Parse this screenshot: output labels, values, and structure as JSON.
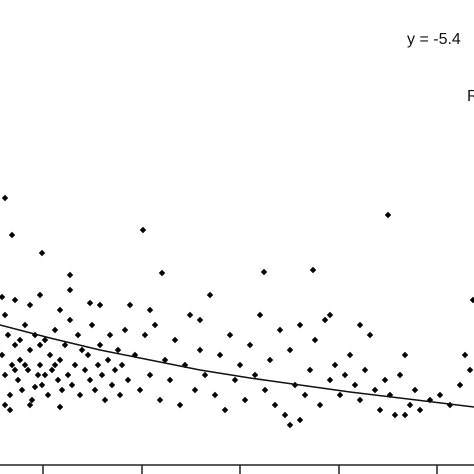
{
  "chart_data": {
    "type": "scatter",
    "annotations": [
      "y = -5.4",
      "R"
    ],
    "color": "#000000",
    "x": [
      0.02,
      0.05,
      0.08,
      0.1,
      0.12,
      0.15,
      0.05,
      0.18,
      0.2,
      0.22,
      0.25,
      0.28,
      0.3,
      0.32,
      0.35,
      0.38,
      0.4,
      0.42,
      0.45,
      0.48,
      0.5,
      0.52,
      0.55,
      0.58,
      0.6,
      0.62,
      0.65,
      0.68,
      0.7,
      0.72,
      0.75,
      0.78,
      0.8,
      0.82,
      0.85,
      0.88,
      0.9,
      0.92,
      0.95,
      0.98,
      1.0,
      1.02,
      1.05,
      1.08,
      1.1,
      1.12,
      1.15,
      1.18,
      1.2,
      1.22,
      1.25,
      1.28,
      0.1,
      0.3,
      0.6,
      0.35,
      0.15,
      0.45,
      0.25,
      0.55,
      0.4,
      0.2,
      0.05,
      0.3,
      0.4,
      0.6,
      0.7,
      0.9,
      1.0,
      0.15,
      0.05,
      0.12,
      0.42,
      1.43,
      1.62,
      2.64,
      3.13,
      3.88,
      4.73,
      0.7,
      0.02,
      1.35,
      1.4,
      1.45,
      1.5,
      1.55,
      1.6,
      1.65,
      1.7,
      1.75,
      1.8,
      1.85,
      1.9,
      1.95,
      2.0,
      2.05,
      2.1,
      2.15,
      2.2,
      2.25,
      2.3,
      2.35,
      2.4,
      2.45,
      2.5,
      2.55,
      2.6,
      2.65,
      2.7,
      2.75,
      2.8,
      2.85,
      2.9,
      2.95,
      3.0,
      3.05,
      3.1,
      3.15,
      3.2,
      3.25,
      3.3,
      3.35,
      3.4,
      3.45,
      3.5,
      3.55,
      3.6,
      3.65,
      3.7,
      3.75,
      3.8,
      3.85,
      3.9,
      3.95,
      4.0,
      4.05,
      4.1,
      4.15,
      4.2,
      4.3,
      4.4,
      4.5,
      4.6,
      4.65,
      4.7,
      4.05,
      3.0,
      2.9,
      2.0,
      1.3,
      1.5,
      3.3,
      3.6
    ],
    "values": [
      1.1,
      0.9,
      1.3,
      0.7,
      1.0,
      1.2,
      0.6,
      0.85,
      1.05,
      0.75,
      1.4,
      0.95,
      1.15,
      0.65,
      1.3,
      0.9,
      1.0,
      0.8,
      1.25,
      0.7,
      1.1,
      0.95,
      1.35,
      0.85,
      1.05,
      0.75,
      1.2,
      0.9,
      1.45,
      0.8,
      1.0,
      1.3,
      0.7,
      1.15,
      0.95,
      1.1,
      0.85,
      1.4,
      0.75,
      1.0,
      1.2,
      0.9,
      0.65,
      1.05,
      1.3,
      0.8,
      0.95,
      1.15,
      0.7,
      1.0,
      1.35,
      0.85,
      0.55,
      0.6,
      0.58,
      0.78,
      0.95,
      0.9,
      1.0,
      1.0,
      1.2,
      1.25,
      1.5,
      1.6,
      1.7,
      1.55,
      1.75,
      1.62,
      1.6,
      1.65,
      2.67,
      2.3,
      2.12,
      2.35,
      1.92,
      1.93,
      1.95,
      2.5,
      1.65,
      1.9,
      1.68,
      1.1,
      0.75,
      1.3,
      0.9,
      1.4,
      0.65,
      1.05,
      0.85,
      1.25,
      0.6,
      1.0,
      1.5,
      0.75,
      1.15,
      0.9,
      1.7,
      0.7,
      1.1,
      0.55,
      1.3,
      0.85,
      1.0,
      0.65,
      1.2,
      0.9,
      1.5,
      0.75,
      1.05,
      0.6,
      1.35,
      0.5,
      1.15,
      0.8,
      1.4,
      0.7,
      0.95,
      1.25,
      0.6,
      1.45,
      0.85,
      1.0,
      0.7,
      0.9,
      1.1,
      0.8,
      0.65,
      0.95,
      1.3,
      0.75,
      0.55,
      0.85,
      0.7,
      0.5,
      0.9,
      1.1,
      0.6,
      0.75,
      0.55,
      0.65,
      0.7,
      0.6,
      0.8,
      1.1,
      0.95,
      0.5,
      0.45,
      0.4,
      1.45,
      1.6,
      1.55,
      1.5,
      1.4
    ],
    "trendline": {
      "x": [
        0,
        0.5,
        1,
        1.5,
        2,
        2.5,
        3,
        3.5,
        4,
        4.74
      ],
      "values": [
        1.4,
        1.27,
        1.15,
        1.05,
        0.95,
        0.87,
        0.8,
        0.73,
        0.67,
        0.58
      ]
    },
    "xlim": [
      0,
      4.74
    ],
    "ylim": [
      0,
      4.65
    ],
    "xticks": [
      0.43,
      1.42,
      2.4,
      3.39,
      4.37
    ]
  }
}
